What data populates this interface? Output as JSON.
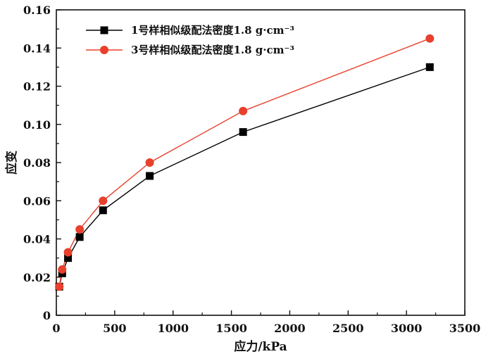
{
  "chart_data": {
    "type": "line",
    "xlabel": "应力/kPa",
    "ylabel": "应变",
    "xlim": [
      0,
      3500
    ],
    "ylim": [
      0,
      0.16
    ],
    "x_ticks": [
      "0",
      "500",
      "1000",
      "1500",
      "2000",
      "2500",
      "3000",
      "3500"
    ],
    "y_ticks": [
      "0",
      "0.02",
      "0.04",
      "0.06",
      "0.08",
      "0.10",
      "0.12",
      "0.14",
      "0.16"
    ],
    "grid": false,
    "legend_position": "top-left",
    "series": [
      {
        "name": "1号样相似级配法密度1.8 g·cm⁻³",
        "marker": "square",
        "color": "#000000",
        "x": [
          25,
          50,
          100,
          200,
          400,
          800,
          1600,
          3200
        ],
        "y": [
          0.015,
          0.022,
          0.03,
          0.041,
          0.055,
          0.073,
          0.096,
          0.13
        ]
      },
      {
        "name": "3号样相似级配法密度1.8 g·cm⁻³",
        "marker": "circle",
        "color": "#e8402c",
        "x": [
          25,
          50,
          100,
          200,
          400,
          800,
          1600,
          3200
        ],
        "y": [
          0.015,
          0.024,
          0.033,
          0.045,
          0.06,
          0.08,
          0.107,
          0.145
        ]
      }
    ]
  }
}
